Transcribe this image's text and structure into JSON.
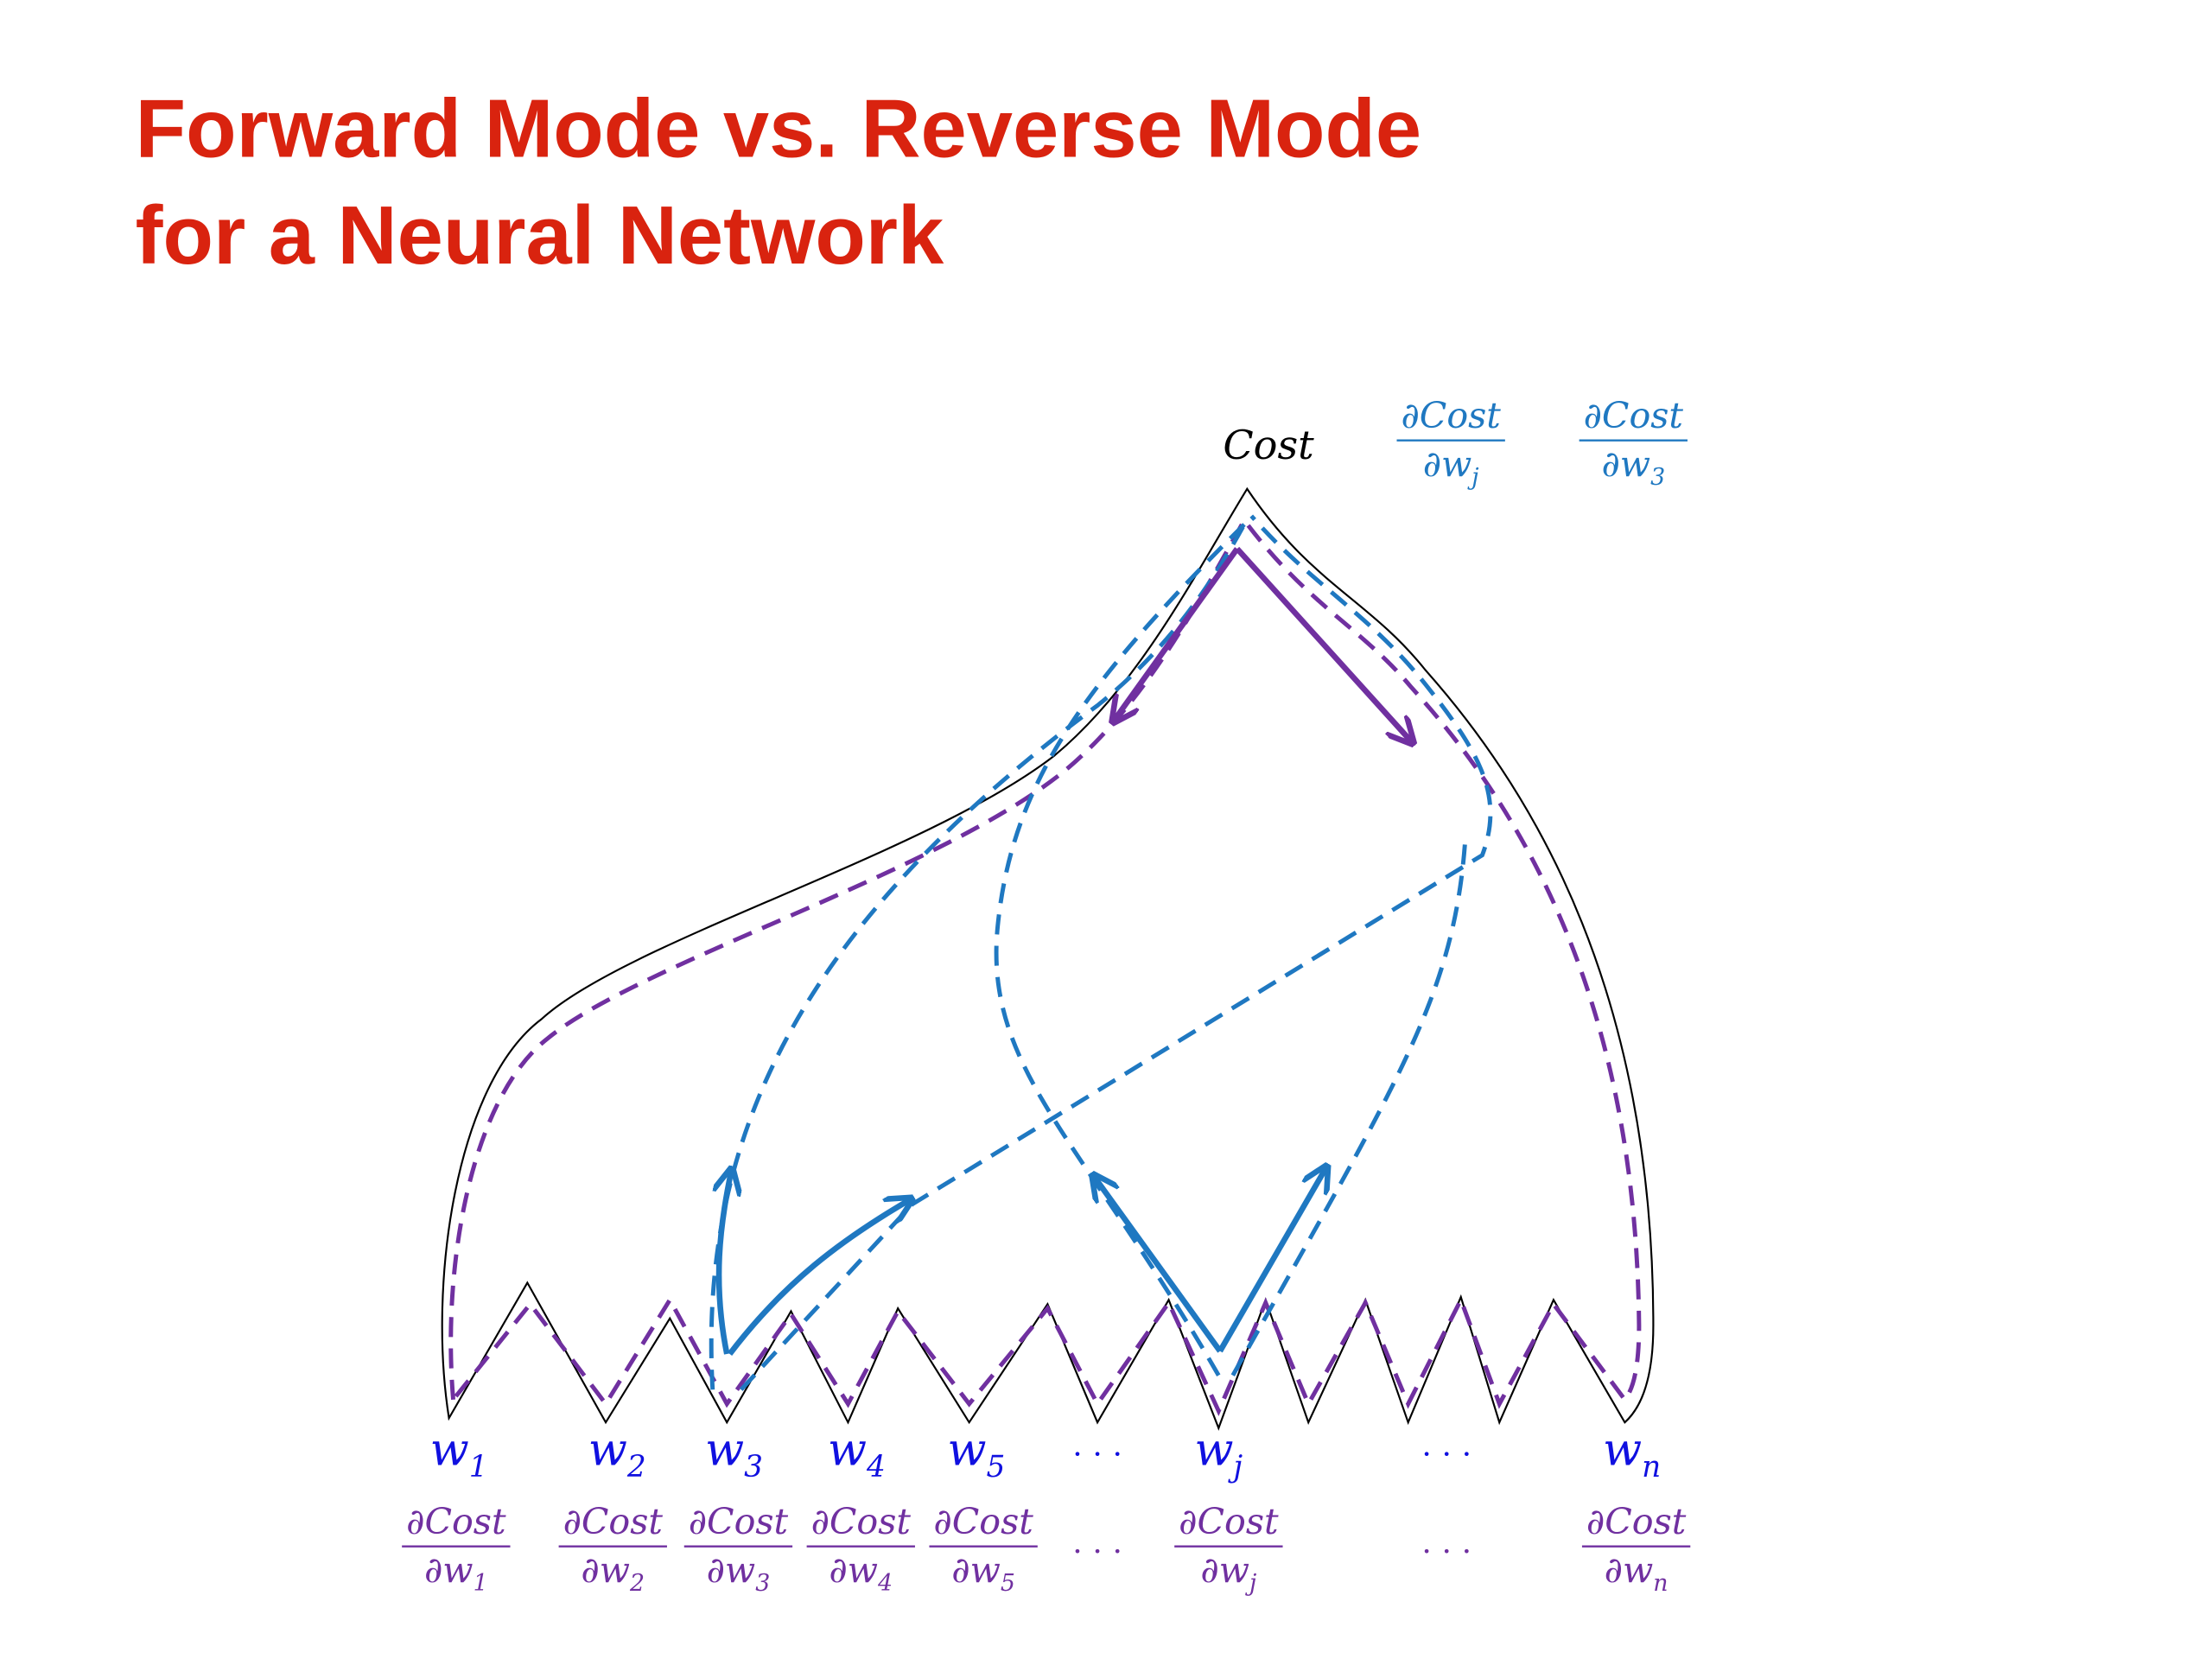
{
  "header": {
    "title_lines": [
      "Forward Mode vs. Reverse Mode",
      "for a Neural Network"
    ]
  },
  "top": {
    "cost": "Cost",
    "fractions": [
      {
        "num": "∂Cost",
        "den": "∂w",
        "sub": "j"
      },
      {
        "num": "∂Cost",
        "den": "∂w",
        "sub": "3"
      }
    ]
  },
  "weights": [
    {
      "base": "w",
      "sub": "1"
    },
    {
      "base": "w",
      "sub": "2"
    },
    {
      "base": "w",
      "sub": "3"
    },
    {
      "base": "w",
      "sub": "4"
    },
    {
      "base": "w",
      "sub": "5"
    },
    {
      "text": "· · ·"
    },
    {
      "base": "w",
      "sub": "j"
    },
    {
      "text": "· · ·"
    },
    {
      "base": "w",
      "sub": "n"
    }
  ],
  "gradients": [
    {
      "num": "∂Cost",
      "den": "∂w",
      "sub": "1"
    },
    {
      "num": "∂Cost",
      "den": "∂w",
      "sub": "2"
    },
    {
      "num": "∂Cost",
      "den": "∂w",
      "sub": "3"
    },
    {
      "num": "∂Cost",
      "den": "∂w",
      "sub": "4"
    },
    {
      "num": "∂Cost",
      "den": "∂w",
      "sub": "5"
    },
    {
      "text": "· · ·"
    },
    {
      "num": "∂Cost",
      "den": "∂w",
      "sub": "j"
    },
    {
      "text": "· · ·"
    },
    {
      "num": "∂Cost",
      "den": "∂w",
      "sub": "n"
    }
  ]
}
